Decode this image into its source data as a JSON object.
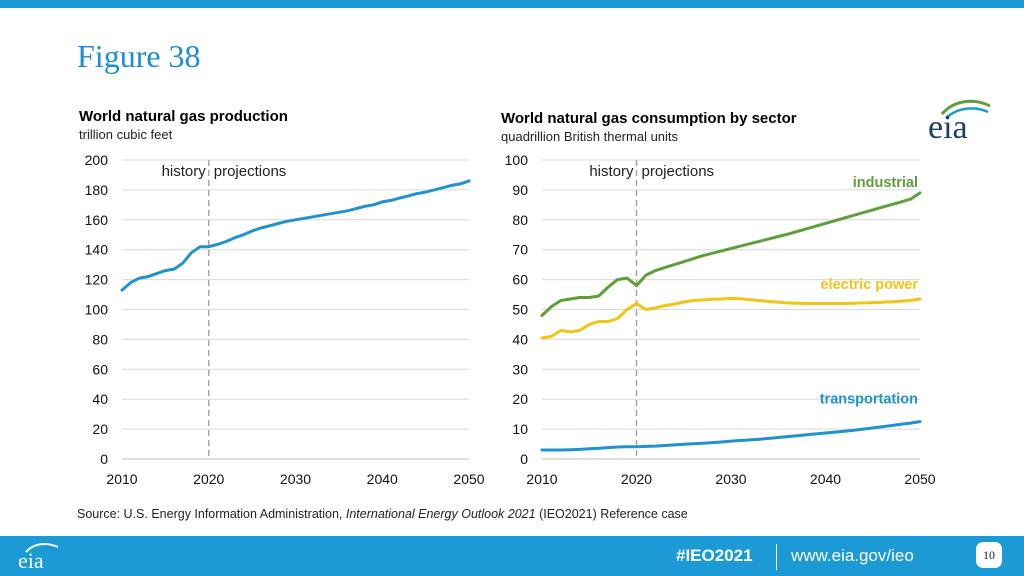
{
  "slide": {
    "title": "Figure 38",
    "hashtag": "#IEO2021",
    "website": "www.eia.gov/ieo",
    "page_number": "10",
    "logo_text": "eia",
    "source_prefix": "Source:  U.S. Energy Information Administration, ",
    "source_italic": "International Energy Outlook 2021",
    "source_suffix": " (IEO2021) Reference case"
  },
  "colors": {
    "brand_blue": "#1b9ad6",
    "title_blue": "#1a8fd0",
    "industrial": "#5e9f3b",
    "electric_power": "#f2c416",
    "transportation": "#1f92cf",
    "production": "#1f92cf",
    "gridline": "#d9d9d9",
    "divider": "#a6a6a6"
  },
  "chart_data": [
    {
      "type": "line",
      "title": "World natural gas production",
      "subtitle": "trillion cubic feet",
      "xlabel": "",
      "ylabel": "",
      "xlim": [
        2010,
        2050
      ],
      "ylim": [
        0,
        200
      ],
      "x_ticks": [
        2010,
        2020,
        2030,
        2040,
        2050
      ],
      "y_ticks": [
        0,
        20,
        40,
        60,
        80,
        100,
        120,
        140,
        160,
        180,
        200
      ],
      "grid": true,
      "divider_year": 2020,
      "annotations": {
        "history": "history",
        "projections": "projections"
      },
      "x": [
        2010,
        2011,
        2012,
        2013,
        2014,
        2015,
        2016,
        2017,
        2018,
        2019,
        2020,
        2021,
        2022,
        2023,
        2024,
        2025,
        2026,
        2027,
        2028,
        2029,
        2030,
        2031,
        2032,
        2033,
        2034,
        2035,
        2036,
        2037,
        2038,
        2039,
        2040,
        2041,
        2042,
        2043,
        2044,
        2045,
        2046,
        2047,
        2048,
        2049,
        2050
      ],
      "series": [
        {
          "name": "production",
          "color_key": "production",
          "values": [
            113,
            118,
            121,
            122,
            124,
            126,
            127,
            131,
            138,
            142,
            142,
            143.5,
            145.5,
            148,
            150,
            152.5,
            154.5,
            156,
            157.5,
            159,
            160,
            161,
            162,
            163,
            164,
            165,
            166,
            167.5,
            169,
            170,
            172,
            173,
            174.5,
            176,
            177.5,
            178.5,
            180,
            181.5,
            183,
            184,
            186
          ]
        }
      ]
    },
    {
      "type": "line",
      "title": "World natural gas consumption by sector",
      "subtitle": "quadrillion British thermal units",
      "xlabel": "",
      "ylabel": "",
      "xlim": [
        2010,
        2050
      ],
      "ylim": [
        0,
        100
      ],
      "x_ticks": [
        2010,
        2020,
        2030,
        2040,
        2050
      ],
      "y_ticks": [
        0,
        10,
        20,
        30,
        40,
        50,
        60,
        70,
        80,
        90,
        100
      ],
      "grid": true,
      "divider_year": 2020,
      "annotations": {
        "history": "history",
        "projections": "projections"
      },
      "x": [
        2010,
        2011,
        2012,
        2013,
        2014,
        2015,
        2016,
        2017,
        2018,
        2019,
        2020,
        2021,
        2022,
        2023,
        2024,
        2025,
        2026,
        2027,
        2028,
        2029,
        2030,
        2031,
        2032,
        2033,
        2034,
        2035,
        2036,
        2037,
        2038,
        2039,
        2040,
        2041,
        2042,
        2043,
        2044,
        2045,
        2046,
        2047,
        2048,
        2049,
        2050
      ],
      "series": [
        {
          "name": "industrial",
          "color_key": "industrial",
          "values": [
            48,
            51,
            53,
            53.5,
            54,
            54,
            54.5,
            57.5,
            60,
            60.5,
            58,
            61.5,
            63,
            64,
            65,
            66,
            67,
            68,
            68.8,
            69.6,
            70.4,
            71.2,
            72,
            72.8,
            73.6,
            74.4,
            75.2,
            76.1,
            77,
            77.9,
            78.8,
            79.7,
            80.6,
            81.5,
            82.4,
            83.3,
            84.2,
            85.1,
            86,
            86.9,
            89
          ]
        },
        {
          "name": "electric power",
          "color_key": "electric_power",
          "values": [
            40.5,
            41,
            43,
            42.5,
            43,
            45,
            46,
            46,
            47,
            50,
            52,
            50,
            50.5,
            51.3,
            51.8,
            52.5,
            53,
            53.2,
            53.4,
            53.5,
            53.7,
            53.6,
            53.3,
            53,
            52.7,
            52.4,
            52.2,
            52.1,
            52,
            52,
            52,
            52,
            52,
            52.1,
            52.2,
            52.3,
            52.4,
            52.6,
            52.8,
            53,
            53.5
          ]
        },
        {
          "name": "transportation",
          "color_key": "transportation",
          "values": [
            3,
            3,
            3,
            3.1,
            3.2,
            3.4,
            3.6,
            3.8,
            4,
            4.1,
            4.1,
            4.2,
            4.3,
            4.5,
            4.7,
            4.9,
            5.1,
            5.3,
            5.5,
            5.7,
            6,
            6.2,
            6.4,
            6.6,
            6.9,
            7.2,
            7.5,
            7.8,
            8.1,
            8.4,
            8.7,
            9,
            9.3,
            9.6,
            10,
            10.4,
            10.8,
            11.2,
            11.6,
            12,
            12.5
          ]
        }
      ]
    }
  ]
}
